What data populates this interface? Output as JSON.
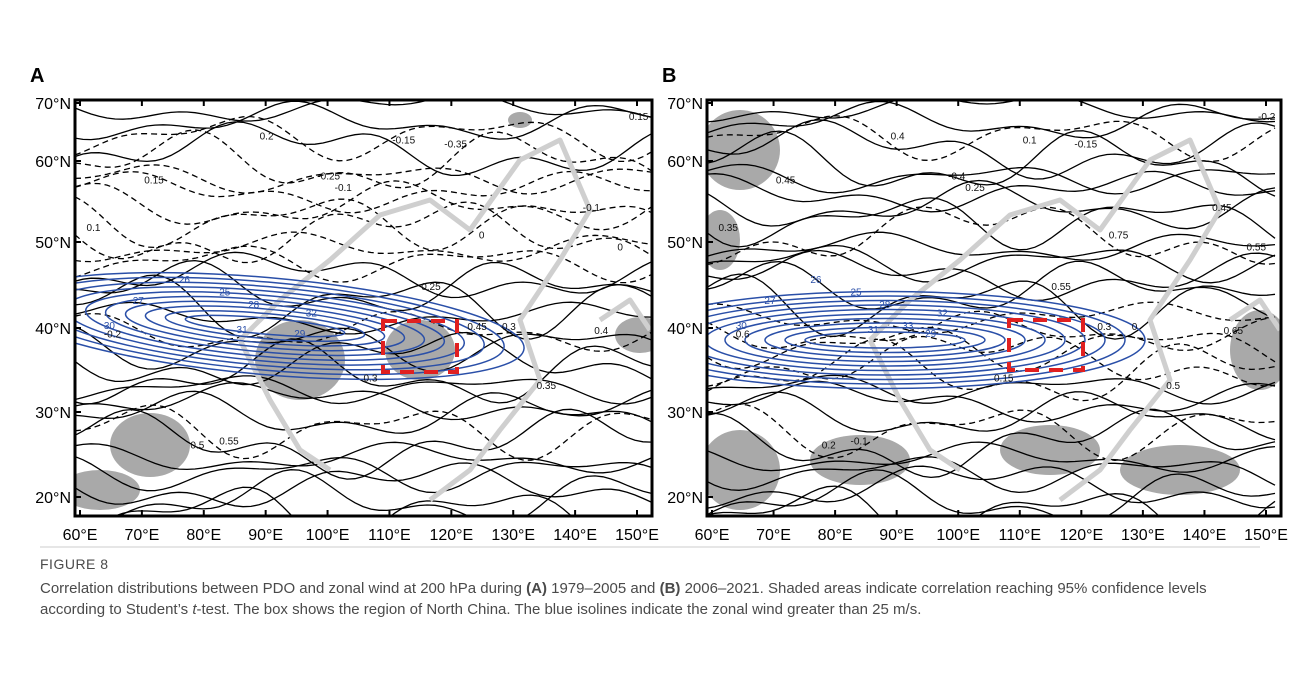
{
  "panels": [
    {
      "label": "A",
      "lat_ticks": [
        "70°N",
        "60°N",
        "50°N",
        "40°N",
        "30°N",
        "20°N"
      ],
      "lon_ticks": [
        "60°E",
        "70°E",
        "80°E",
        "90°E",
        "100°E",
        "110°E",
        "120°E",
        "130°E",
        "140°E",
        "150°E"
      ],
      "contour_labels": [
        "0.2",
        "0.15",
        "0.1",
        "-0.1",
        "-0.15",
        "-0.25",
        "-0.35",
        "0",
        "0.25",
        "0.3",
        "0.35",
        "0.45",
        "0.5",
        "0.55",
        "-0.2",
        "0.4",
        "0.15",
        "-0.1",
        "0",
        "0.3"
      ],
      "wind_labels": [
        "25",
        "26",
        "27",
        "28",
        "29",
        "30",
        "31",
        "32"
      ]
    },
    {
      "label": "B",
      "lat_ticks": [
        "70°N",
        "60°N",
        "50°N",
        "40°N",
        "30°N",
        "20°N"
      ],
      "lon_ticks": [
        "60°E",
        "70°E",
        "80°E",
        "90°E",
        "100°E",
        "110°E",
        "120°E",
        "130°E",
        "140°E",
        "150°E"
      ],
      "contour_labels": [
        "0.4",
        "0.45",
        "0.35",
        "0.25",
        "0.1",
        "-0.4",
        "-0.15",
        "0.75",
        "0.55",
        "0",
        "0.5",
        "0.3",
        "0.2",
        "-0.1",
        "0.6",
        "0.65",
        "-0.2",
        "0.45",
        "0.55",
        "0.15"
      ],
      "wind_labels": [
        "25",
        "26",
        "27",
        "28",
        "29",
        "30",
        "31",
        "32",
        "33"
      ]
    }
  ],
  "caption": {
    "title": "FIGURE 8",
    "segments": [
      "Correlation distributions between PDO and zonal wind at 200 hPa during ",
      "(A)",
      " 1979–2005 and ",
      "(B)",
      " 2006–2021. Shaded areas indicate correlation reaching 95% confidence levels according to Student’s ",
      "t",
      "-test. The box shows the region of North China. The blue isolines indicate the zonal wind greater than 25 m/s."
    ]
  }
}
